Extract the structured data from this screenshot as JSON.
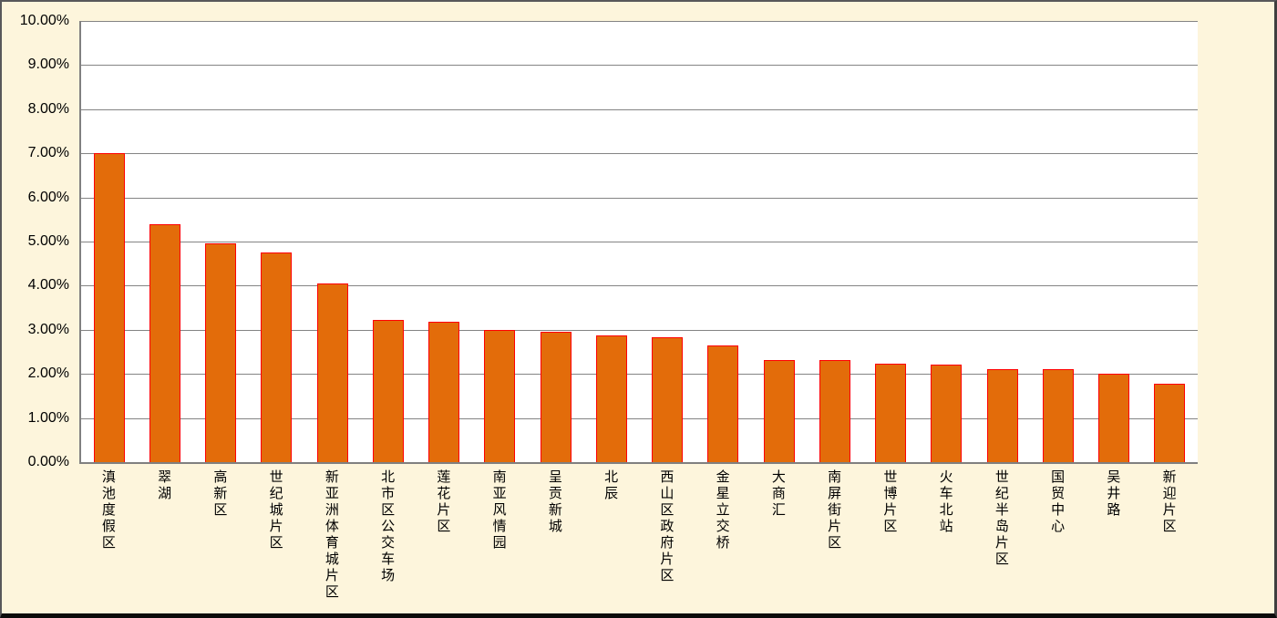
{
  "chart_data": {
    "type": "bar",
    "title": "",
    "xlabel": "",
    "ylabel": "",
    "legend": "none",
    "grid": "horizontal",
    "ylim": [
      0,
      10
    ],
    "ytick_format": "percent, 2 decimal places",
    "yticks": [
      "0.00%",
      "1.00%",
      "2.00%",
      "3.00%",
      "4.00%",
      "5.00%",
      "6.00%",
      "7.00%",
      "8.00%",
      "9.00%",
      "10.00%"
    ],
    "categories": [
      "滇池度假区",
      "翠湖",
      "高新区",
      "世纪城片区",
      "新亚洲体育城片区",
      "北市区公交车场",
      "莲花片区",
      "南亚风情园",
      "呈贡新城",
      "北辰",
      "西山区政府片区",
      "金星立交桥",
      "大商汇",
      "南屏街片区",
      "世博片区",
      "火车北站",
      "世纪半岛片区",
      "国贸中心",
      "吴井路",
      "新迎片区"
    ],
    "values": [
      7.0,
      5.4,
      4.95,
      4.76,
      4.05,
      3.22,
      3.19,
      2.99,
      2.95,
      2.88,
      2.84,
      2.64,
      2.32,
      2.32,
      2.23,
      2.21,
      2.11,
      2.11,
      2.0,
      1.78
    ],
    "bar_label_orientation": "vertical upright CJK"
  },
  "colors": {
    "bar_fill": "#E36C0A",
    "bar_border": "#FF0000",
    "chart_background": "#FDF5DC",
    "plot_background": "#FFFFFF",
    "gridline": "#848484",
    "axis_line": "#808080",
    "outer_border": "#58585A",
    "text": "#000000"
  }
}
